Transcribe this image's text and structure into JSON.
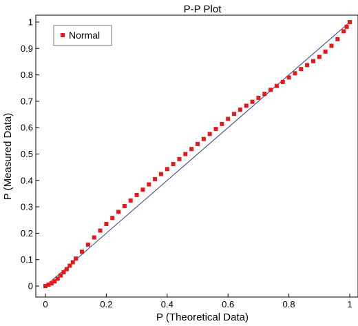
{
  "chart_data": {
    "type": "scatter",
    "title": "P-P Plot",
    "xlabel": "P (Theoretical Data)",
    "ylabel": "P (Measured Data)",
    "xlim": [
      0,
      1
    ],
    "ylim": [
      0,
      1
    ],
    "x_ticks": [
      "0",
      "0.2",
      "0.4",
      "0.6",
      "0.8",
      "1"
    ],
    "y_ticks": [
      "0",
      "0.1",
      "0.2",
      "0.3",
      "0.4",
      "0.5",
      "0.6",
      "0.7",
      "0.8",
      "0.9",
      "1"
    ],
    "grid": false,
    "legend_position": "top-left",
    "reference_line": {
      "from": [
        0,
        0
      ],
      "to": [
        1,
        1
      ],
      "color": "#2a3f8f"
    },
    "series": [
      {
        "name": "Normal",
        "color": "#e31a1c",
        "points": [
          [
            0.0,
            0.0
          ],
          [
            0.01,
            0.005
          ],
          [
            0.02,
            0.01
          ],
          [
            0.03,
            0.018
          ],
          [
            0.04,
            0.028
          ],
          [
            0.05,
            0.04
          ],
          [
            0.06,
            0.052
          ],
          [
            0.07,
            0.064
          ],
          [
            0.08,
            0.077
          ],
          [
            0.09,
            0.09
          ],
          [
            0.1,
            0.104
          ],
          [
            0.12,
            0.13
          ],
          [
            0.14,
            0.157
          ],
          [
            0.16,
            0.184
          ],
          [
            0.18,
            0.21
          ],
          [
            0.2,
            0.235
          ],
          [
            0.22,
            0.258
          ],
          [
            0.24,
            0.281
          ],
          [
            0.26,
            0.303
          ],
          [
            0.28,
            0.324
          ],
          [
            0.3,
            0.345
          ],
          [
            0.32,
            0.365
          ],
          [
            0.34,
            0.385
          ],
          [
            0.36,
            0.405
          ],
          [
            0.38,
            0.424
          ],
          [
            0.4,
            0.443
          ],
          [
            0.42,
            0.462
          ],
          [
            0.44,
            0.481
          ],
          [
            0.46,
            0.5
          ],
          [
            0.48,
            0.519
          ],
          [
            0.5,
            0.538
          ],
          [
            0.52,
            0.557
          ],
          [
            0.54,
            0.576
          ],
          [
            0.56,
            0.595
          ],
          [
            0.58,
            0.614
          ],
          [
            0.6,
            0.633
          ],
          [
            0.62,
            0.652
          ],
          [
            0.64,
            0.668
          ],
          [
            0.66,
            0.683
          ],
          [
            0.68,
            0.698
          ],
          [
            0.7,
            0.713
          ],
          [
            0.72,
            0.728
          ],
          [
            0.74,
            0.743
          ],
          [
            0.76,
            0.758
          ],
          [
            0.78,
            0.773
          ],
          [
            0.8,
            0.79
          ],
          [
            0.82,
            0.806
          ],
          [
            0.84,
            0.822
          ],
          [
            0.86,
            0.837
          ],
          [
            0.88,
            0.852
          ],
          [
            0.9,
            0.868
          ],
          [
            0.92,
            0.888
          ],
          [
            0.94,
            0.91
          ],
          [
            0.96,
            0.935
          ],
          [
            0.98,
            0.965
          ],
          [
            0.99,
            0.982
          ],
          [
            1.0,
            1.0
          ]
        ]
      }
    ]
  }
}
